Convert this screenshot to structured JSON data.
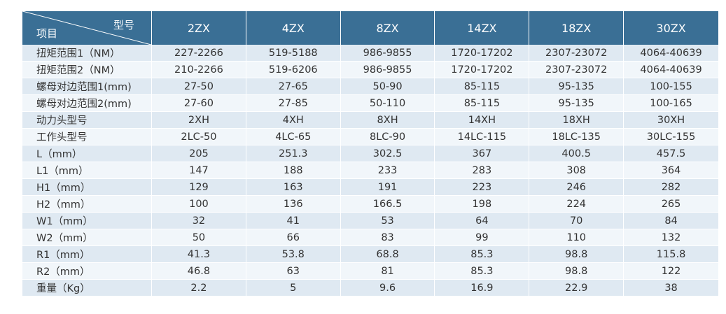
{
  "table": {
    "corner_top": "型号",
    "corner_bottom": "项目",
    "models": [
      "2ZX",
      "4ZX",
      "8ZX",
      "14ZX",
      "18ZX",
      "30ZX"
    ],
    "rows": [
      {
        "label": "扭矩范围1（NM）",
        "values": [
          "227-2266",
          "519-5188",
          "986-9855",
          "1720-17202",
          "2307-23072",
          "4064-40639"
        ]
      },
      {
        "label": "扭矩范围2（NM）",
        "values": [
          "210-2266",
          "519-6206",
          "986-9855",
          "1720-17202",
          "2307-23072",
          "4064-40639"
        ]
      },
      {
        "label": "螺母对边范围1(mm)",
        "values": [
          "27-50",
          "27-65",
          "50-90",
          "85-115",
          "95-135",
          "100-155"
        ]
      },
      {
        "label": "螺母对边范围2(mm)",
        "values": [
          "27-60",
          "27-85",
          "50-110",
          "85-115",
          "95-135",
          "100-165"
        ]
      },
      {
        "label": "动力头型号",
        "values": [
          "2XH",
          "4XH",
          "8XH",
          "14XH",
          "18XH",
          "30XH"
        ]
      },
      {
        "label": "工作头型号",
        "values": [
          "2LC-50",
          "4LC-65",
          "8LC-90",
          "14LC-115",
          "18LC-135",
          "30LC-155"
        ]
      },
      {
        "label": "L（mm）",
        "values": [
          "205",
          "251.3",
          "302.5",
          "367",
          "400.5",
          "457.5"
        ]
      },
      {
        "label": "L1（mm）",
        "values": [
          "147",
          "188",
          "233",
          "283",
          "308",
          "364"
        ]
      },
      {
        "label": "H1（mm）",
        "values": [
          "129",
          "163",
          "191",
          "223",
          "246",
          "282"
        ]
      },
      {
        "label": "H2（mm）",
        "values": [
          "100",
          "136",
          "166.5",
          "198",
          "224",
          "265"
        ]
      },
      {
        "label": "W1（mm）",
        "values": [
          "32",
          "41",
          "53",
          "64",
          "70",
          "84"
        ]
      },
      {
        "label": "W2（mm）",
        "values": [
          "50",
          "66",
          "83",
          "99",
          "110",
          "132"
        ]
      },
      {
        "label": "R1（mm）",
        "values": [
          "41.3",
          "53.8",
          "68.8",
          "85.3",
          "98.8",
          "115.8"
        ]
      },
      {
        "label": "R2（mm）",
        "values": [
          "46.8",
          "63",
          "81",
          "85.3",
          "98.8",
          "122"
        ]
      },
      {
        "label": "重量（Kg）",
        "values": [
          "2.2",
          "5",
          "9.6",
          "16.9",
          "22.9",
          "38"
        ]
      }
    ]
  },
  "colors": {
    "header_bg": "#3a6f95",
    "row_odd_bg": "#dfe9f2",
    "row_even_bg": "#f1f6fa",
    "text": "#333333"
  }
}
